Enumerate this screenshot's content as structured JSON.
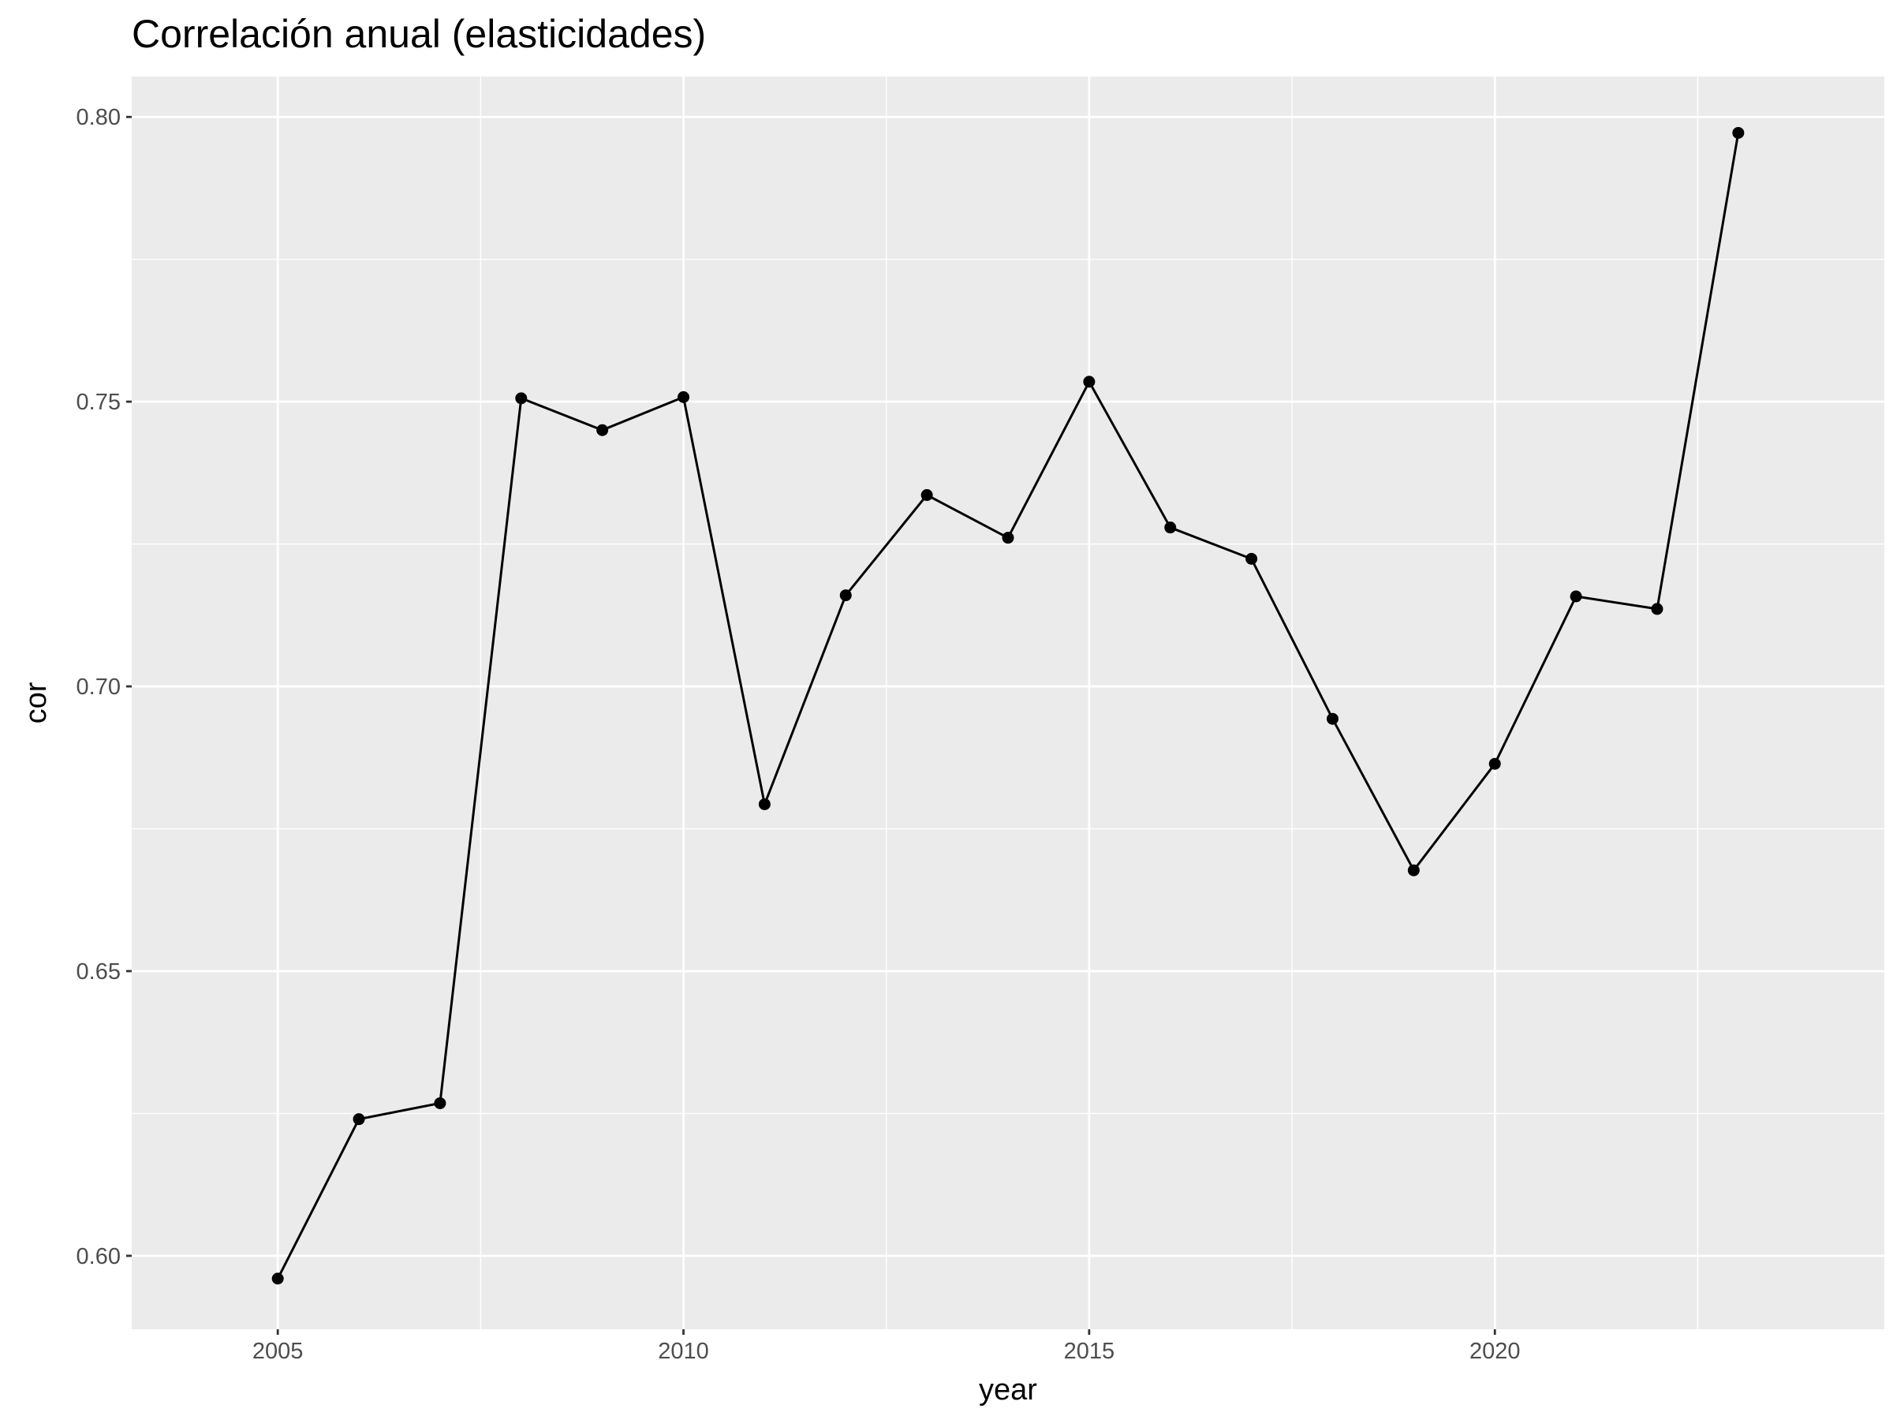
{
  "chart_data": {
    "type": "line",
    "title": "Correlación anual (elasticidades)",
    "xlabel": "year",
    "ylabel": "cor",
    "x": [
      2005,
      2006,
      2007,
      2008,
      2009,
      2010,
      2011,
      2012,
      2013,
      2014,
      2015,
      2016,
      2017,
      2018,
      2019,
      2020,
      2021,
      2022,
      2023
    ],
    "series": [
      {
        "values": [
          0.596,
          0.624,
          0.6268,
          0.7506,
          0.745,
          0.7508,
          0.6793,
          0.716,
          0.7336,
          0.7261,
          0.7535,
          0.7279,
          0.7224,
          0.6943,
          0.6677,
          0.6864,
          0.7158,
          0.7136,
          0.7972
        ]
      }
    ],
    "xlim": [
      2003.2,
      2024.8
    ],
    "ylim": [
      0.5871,
      0.8071
    ],
    "x_ticks": [
      2005,
      2010,
      2015,
      2020
    ],
    "x_tick_labels": [
      "2005",
      "2010",
      "2015",
      "2020"
    ],
    "y_ticks": [
      0.6,
      0.65,
      0.7,
      0.75,
      0.8
    ],
    "y_tick_labels": [
      "0.60",
      "0.65",
      "0.70",
      "0.75",
      "0.80"
    ],
    "grid": true,
    "legend": "none",
    "colors": {
      "panel": "#ebebeb",
      "grid": "#ffffff",
      "line": "#000000",
      "point": "#000000"
    }
  }
}
